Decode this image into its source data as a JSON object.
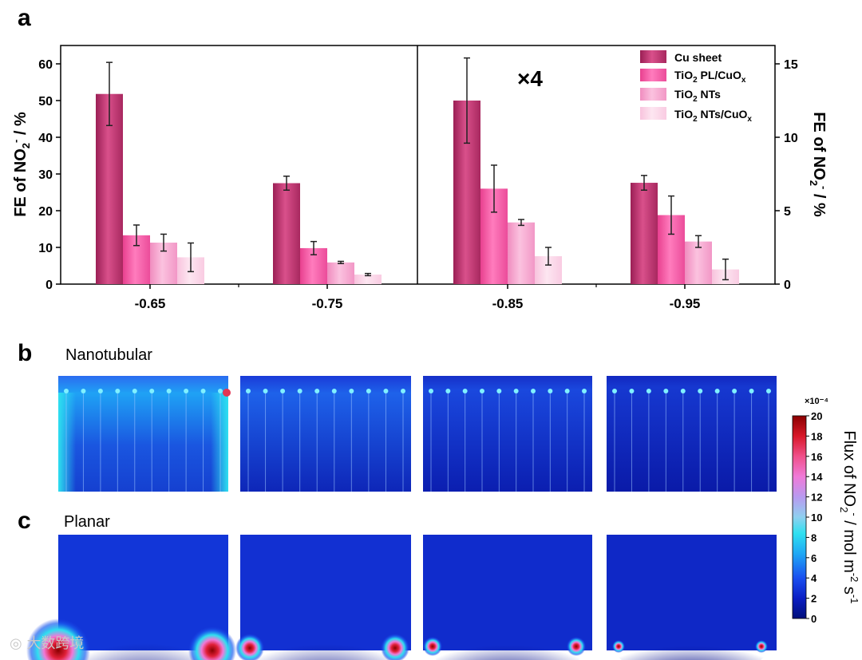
{
  "panels": {
    "a": "a",
    "b": "b",
    "c": "c",
    "b_title": "Nanotubular",
    "c_title": "Planar"
  },
  "multiplier_label": "×4",
  "watermark": "大数跨境",
  "colors": {
    "cu_sheet": "#c0336f",
    "tio2_pl_cuox": "#f25aa7",
    "tio2_nts": "#f6a6cf",
    "tio2_nts_cuox": "#fbd3e6",
    "field_dark": "#0b1aa8",
    "field_mid": "#1f55e6",
    "field_cyan": "#27d7ee",
    "hotspot": "#e23552"
  },
  "chart_data": {
    "type": "bar",
    "title": "",
    "xlabel": "",
    "ylabel_left": "FE of NO2- / %",
    "ylabel_right": "FE of NO2- / %",
    "ylim_left": [
      0,
      65
    ],
    "ylim_right": [
      0,
      16.25
    ],
    "yticks_left": [
      0,
      10,
      20,
      30,
      40,
      50,
      60
    ],
    "yticks_right": [
      0,
      5,
      10,
      15
    ],
    "categories": [
      "-0.65",
      "-0.75",
      "-0.85",
      "-0.95"
    ],
    "left_axis_categories": [
      "-0.65",
      "-0.75"
    ],
    "right_axis_categories": [
      "-0.85",
      "-0.95"
    ],
    "legend_position": "top-right",
    "series": [
      {
        "name": "Cu sheet",
        "values": [
          51.8,
          27.5,
          12.5,
          6.9
        ],
        "errors": [
          8.6,
          1.9,
          2.9,
          0.5
        ],
        "color": "#c0336f"
      },
      {
        "name": "TiO2 PL/CuOx",
        "values": [
          13.3,
          9.8,
          6.5,
          4.7
        ],
        "errors": [
          2.8,
          1.8,
          1.6,
          1.3
        ],
        "color": "#f25aa7"
      },
      {
        "name": "TiO2 NTs",
        "values": [
          11.3,
          5.9,
          4.2,
          2.9
        ],
        "errors": [
          2.3,
          0.3,
          0.2,
          0.4
        ],
        "color": "#f6a6cf"
      },
      {
        "name": "TiO2 NTs/CuOx",
        "values": [
          7.3,
          2.6,
          1.9,
          1.0
        ],
        "errors": [
          3.9,
          0.3,
          0.6,
          0.7
        ],
        "color": "#fbd3e6"
      }
    ]
  },
  "colorbar": {
    "label": "Flux of NO2- / mol m-2 s-1",
    "exponent": "×10⁻⁴",
    "range": [
      0,
      20
    ],
    "ticks": [
      "0",
      "2",
      "4",
      "6",
      "8",
      "10",
      "12",
      "14",
      "16",
      "18",
      "20"
    ]
  }
}
